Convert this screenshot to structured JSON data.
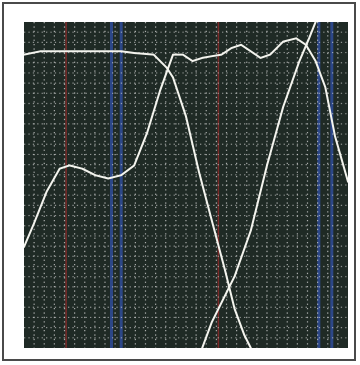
{
  "chart_data": {
    "type": "line",
    "title": "",
    "xlabel": "",
    "ylabel": "",
    "xlim": [
      0,
      100
    ],
    "ylim": [
      0,
      100
    ],
    "grid": true,
    "legend": "none",
    "colors": {
      "background": "#1f2a25",
      "grid_dots": "#d8d8d8",
      "trace": "#f4f4ee",
      "marker_red": "#8a2a2a",
      "marker_blue": "#2f4d9a",
      "frame": "#4a4a4a"
    },
    "reference_lines": [
      {
        "x": 13,
        "color": "marker_red"
      },
      {
        "x": 27,
        "color": "marker_blue"
      },
      {
        "x": 30,
        "color": "marker_blue"
      },
      {
        "x": 60,
        "color": "marker_red"
      },
      {
        "x": 91,
        "color": "marker_blue"
      },
      {
        "x": 95,
        "color": "marker_blue"
      }
    ],
    "series": [
      {
        "x": [
          0,
          5,
          10,
          20,
          30,
          34,
          40,
          42,
          44,
          46,
          50
        ],
        "y": [
          90,
          91,
          91,
          91,
          91,
          90.5,
          90,
          88,
          86,
          83,
          71
        ]
      },
      {
        "x": [
          0,
          3,
          7,
          11,
          14,
          18,
          22,
          26,
          30,
          34,
          38,
          42,
          46,
          49,
          52,
          55,
          58,
          61,
          64,
          67,
          70,
          73,
          76,
          80,
          84,
          87,
          90,
          93,
          96,
          100
        ],
        "y": [
          31,
          38,
          48,
          55,
          56,
          55,
          53,
          52,
          53,
          56,
          66,
          79,
          90,
          90,
          88,
          89,
          89.5,
          90,
          92,
          93,
          91,
          89,
          90,
          94,
          95,
          93,
          88,
          80,
          65,
          51
        ]
      },
      {
        "x": [
          50,
          54,
          58,
          62,
          65,
          68,
          70
        ],
        "y": [
          71,
          54,
          39,
          24,
          12,
          4,
          0
        ]
      },
      {
        "x": [
          55,
          58,
          61,
          65,
          70,
          75,
          80,
          85,
          88,
          90
        ],
        "y": [
          0,
          8,
          14,
          22,
          36,
          56,
          74,
          88,
          95,
          100
        ]
      }
    ]
  }
}
